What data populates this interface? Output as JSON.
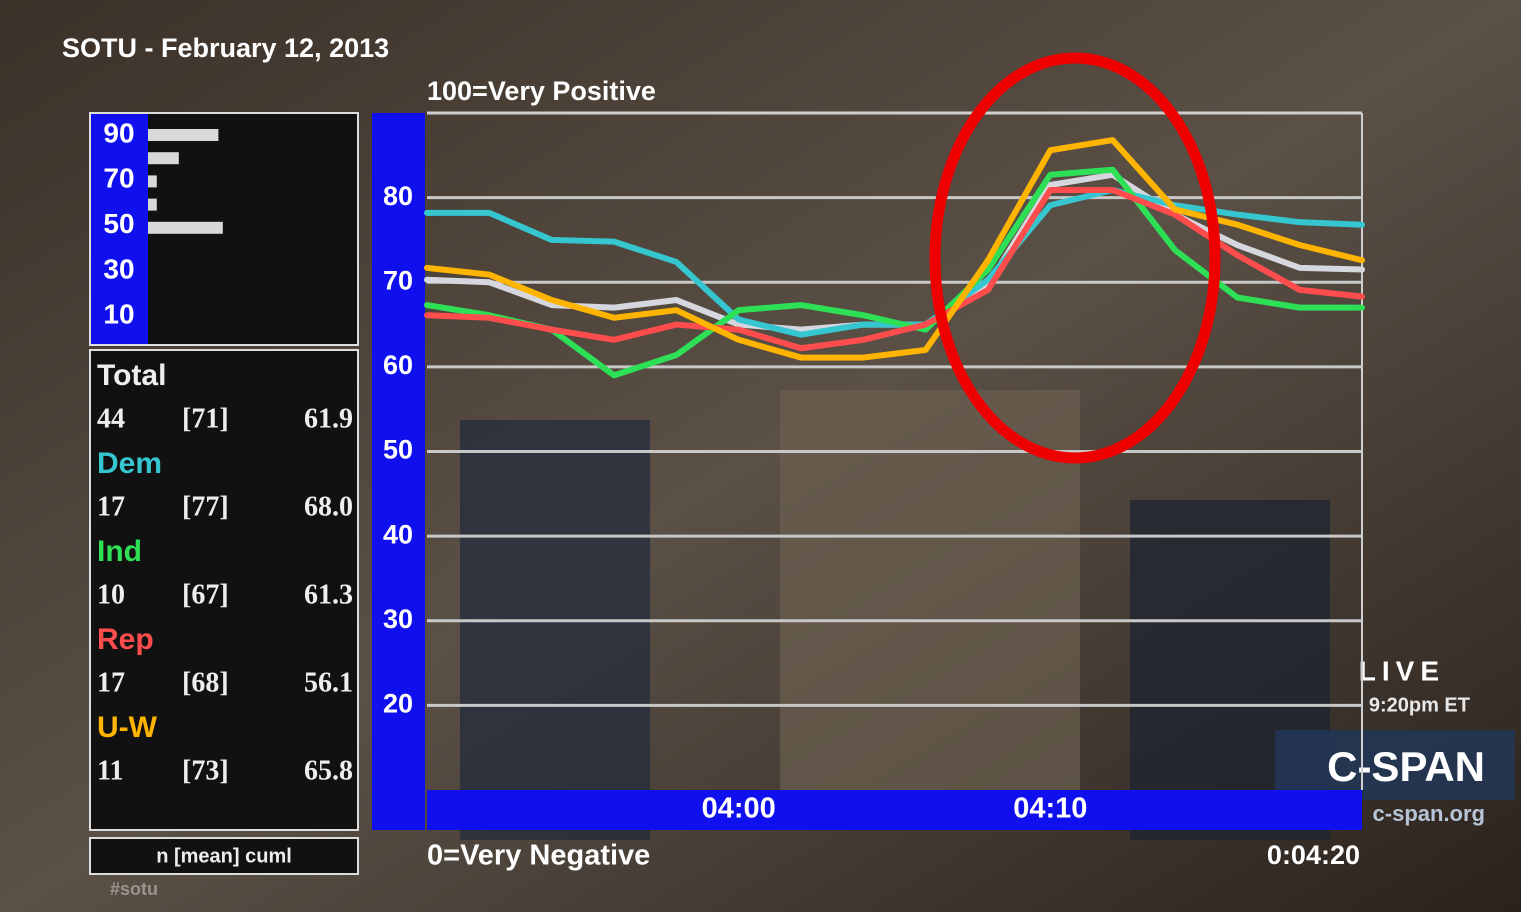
{
  "chart_data": {
    "type": "line",
    "title": "SOTU - February 12, 2013",
    "y_top_label": "100=Very Positive",
    "y_bottom_label": "0=Very Negative",
    "clock": "0:04:20",
    "x": [
      230,
      232,
      234,
      236,
      238,
      240,
      242,
      244,
      246,
      248,
      250,
      252,
      254,
      256,
      258,
      260
    ],
    "xlim": [
      230,
      260
    ],
    "xticks": [
      {
        "value": 240,
        "label": "04:00"
      },
      {
        "value": 250,
        "label": "04:10"
      }
    ],
    "ylim": [
      10,
      90
    ],
    "yticks": [
      20,
      30,
      40,
      50,
      60,
      70,
      80
    ],
    "grid": true,
    "series": [
      {
        "name": "Total",
        "color": "#d6d6de",
        "n": "44",
        "mean": "[71]",
        "cuml": "61.9",
        "values": [
          70.3,
          70,
          67.3,
          67,
          67.9,
          65,
          64.4,
          65,
          65,
          69.7,
          81.5,
          82.7,
          78,
          74.4,
          71.7,
          71.5
        ]
      },
      {
        "name": "Dem",
        "color": "#35c6d0",
        "n": "17",
        "mean": "[77]",
        "cuml": "68.0",
        "values": [
          78.2,
          78.2,
          75,
          74.8,
          72.4,
          65.6,
          63.8,
          65,
          65,
          70.3,
          79.1,
          80.9,
          79.1,
          78,
          77.1,
          76.8
        ]
      },
      {
        "name": "Ind",
        "color": "#2de055",
        "n": "10",
        "mean": "[67]",
        "cuml": "61.3",
        "values": [
          67.3,
          66.1,
          64.4,
          59,
          61.4,
          66.7,
          67.3,
          66.1,
          64.4,
          71.5,
          82.7,
          83.3,
          73.8,
          68.2,
          67,
          67
        ]
      },
      {
        "name": "Rep",
        "color": "#ff4d4d",
        "n": "17",
        "mean": "[68]",
        "cuml": "56.1",
        "values": [
          66.1,
          65.8,
          64.4,
          63.2,
          65,
          64.4,
          62.2,
          63.2,
          65,
          69.1,
          80.9,
          80.9,
          78,
          73.2,
          69.1,
          68.3
        ]
      },
      {
        "name": "U-W",
        "color": "#ffb400",
        "n": "11",
        "mean": "[73]",
        "cuml": "65.8",
        "values": [
          71.7,
          70.9,
          67.9,
          65.8,
          66.7,
          63.2,
          61.1,
          61.1,
          62,
          72.6,
          85.6,
          86.8,
          78.6,
          76.8,
          74.4,
          72.6
        ]
      }
    ],
    "table_footer": "n [mean] cuml",
    "distribution": {
      "axis_labels": [
        90,
        70,
        50,
        30,
        10
      ],
      "levels": [
        90,
        80,
        70,
        60,
        50
      ],
      "counts": [
        16,
        7,
        2,
        2,
        17
      ]
    }
  },
  "broadcast": {
    "live": "LIVE",
    "time": "9:20pm ET",
    "network": "C-SPAN",
    "site": "c-span.org",
    "hashtag": "#sotu"
  }
}
